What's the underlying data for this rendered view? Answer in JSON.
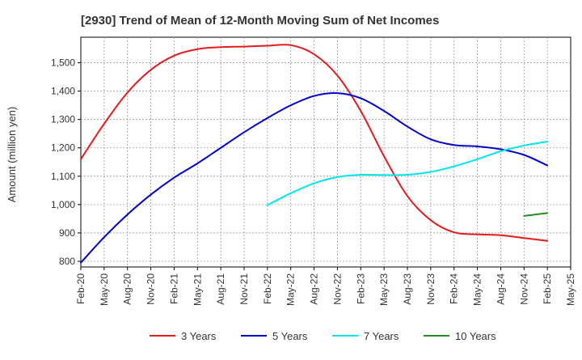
{
  "chart_data": {
    "type": "line",
    "title": "[2930]  Trend of Mean of 12-Month Moving Sum of Net Incomes",
    "xlabel": "",
    "ylabel": "Amount (million yen)",
    "x_ticks": [
      "Feb-20",
      "May-20",
      "Aug-20",
      "Nov-20",
      "Feb-21",
      "May-21",
      "Aug-21",
      "Nov-21",
      "Feb-22",
      "May-22",
      "Aug-22",
      "Nov-22",
      "Feb-23",
      "May-23",
      "Aug-23",
      "Nov-23",
      "Feb-24",
      "May-24",
      "Aug-24",
      "Nov-24",
      "Feb-25",
      "May-25"
    ],
    "y_ticks": [
      800,
      900,
      1000,
      1100,
      1200,
      1300,
      1400,
      1500
    ],
    "y_tick_labels": [
      "800",
      "900",
      "1,000",
      "1,100",
      "1,200",
      "1,300",
      "1,400",
      "1,500"
    ],
    "ylim": [
      780,
      1590
    ],
    "grid": true,
    "legend_position": "bottom",
    "series": [
      {
        "name": "3 Years",
        "color": "#e41a1c",
        "points": [
          [
            "Feb-20",
            1160
          ],
          [
            "May-20",
            1285
          ],
          [
            "Aug-20",
            1395
          ],
          [
            "Nov-20",
            1475
          ],
          [
            "Feb-21",
            1525
          ],
          [
            "May-21",
            1548
          ],
          [
            "Aug-21",
            1555
          ],
          [
            "Nov-21",
            1557
          ],
          [
            "Feb-22",
            1560
          ],
          [
            "May-22",
            1562
          ],
          [
            "Aug-22",
            1530
          ],
          [
            "Nov-22",
            1455
          ],
          [
            "Feb-23",
            1330
          ],
          [
            "May-23",
            1170
          ],
          [
            "Aug-23",
            1030
          ],
          [
            "Nov-23",
            945
          ],
          [
            "Feb-24",
            902
          ],
          [
            "May-24",
            895
          ],
          [
            "Aug-24",
            892
          ],
          [
            "Nov-24",
            882
          ],
          [
            "Feb-25",
            872
          ]
        ]
      },
      {
        "name": "5 Years",
        "color": "#0000cd",
        "points": [
          [
            "Feb-20",
            795
          ],
          [
            "May-20",
            885
          ],
          [
            "Aug-20",
            965
          ],
          [
            "Nov-20",
            1035
          ],
          [
            "Feb-21",
            1095
          ],
          [
            "May-21",
            1145
          ],
          [
            "Aug-21",
            1200
          ],
          [
            "Nov-21",
            1255
          ],
          [
            "Feb-22",
            1305
          ],
          [
            "May-22",
            1350
          ],
          [
            "Aug-22",
            1383
          ],
          [
            "Nov-22",
            1393
          ],
          [
            "Feb-23",
            1375
          ],
          [
            "May-23",
            1330
          ],
          [
            "Aug-23",
            1275
          ],
          [
            "Nov-23",
            1230
          ],
          [
            "Feb-24",
            1210
          ],
          [
            "May-24",
            1205
          ],
          [
            "Aug-24",
            1195
          ],
          [
            "Nov-24",
            1175
          ],
          [
            "Feb-25",
            1138
          ]
        ]
      },
      {
        "name": "7 Years",
        "color": "#00e5ee",
        "points": [
          [
            "Feb-22",
            998
          ],
          [
            "May-22",
            1040
          ],
          [
            "Aug-22",
            1075
          ],
          [
            "Nov-22",
            1097
          ],
          [
            "Feb-23",
            1105
          ],
          [
            "May-23",
            1104
          ],
          [
            "Aug-23",
            1105
          ],
          [
            "Nov-23",
            1115
          ],
          [
            "Feb-24",
            1135
          ],
          [
            "May-24",
            1160
          ],
          [
            "Aug-24",
            1188
          ],
          [
            "Nov-24",
            1208
          ],
          [
            "Feb-25",
            1222
          ]
        ]
      },
      {
        "name": "10 Years",
        "color": "#228b22",
        "points": [
          [
            "Nov-24",
            960
          ],
          [
            "Feb-25",
            970
          ]
        ]
      }
    ]
  }
}
